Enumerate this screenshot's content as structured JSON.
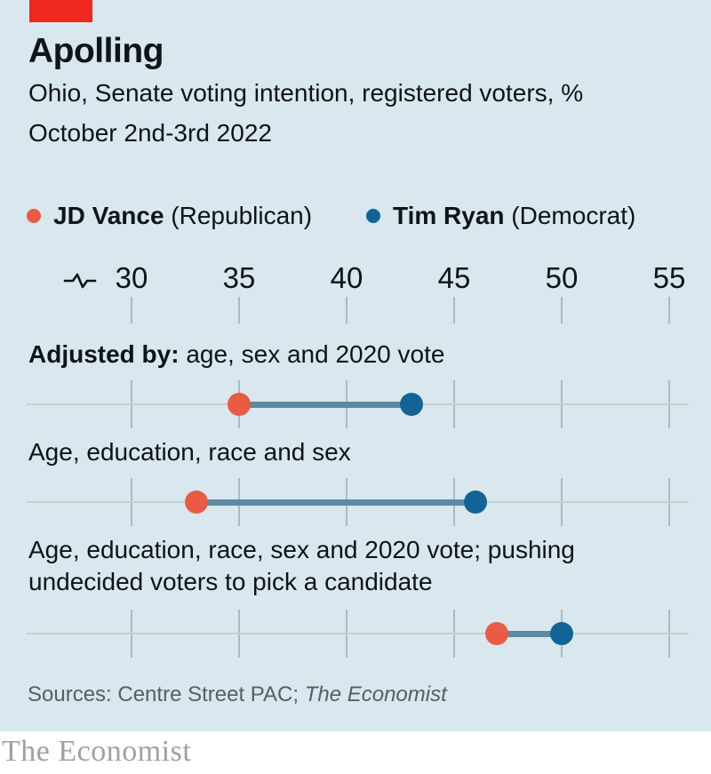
{
  "header": {
    "title": "Apolling",
    "subtitle": "Ohio, Senate voting intention, registered voters, %",
    "date": "October 2nd-3rd 2022"
  },
  "legend": {
    "vance": {
      "name": "JD Vance",
      "party": " (Republican)"
    },
    "ryan": {
      "name": "Tim Ryan",
      "party": " (Democrat)"
    }
  },
  "colors": {
    "background": "#d9e7ee",
    "banner_red": "#ee271f",
    "vance": "#ea5b44",
    "ryan": "#126496",
    "connector": "#5d89a2",
    "track": "#c9ced2",
    "tick": "#aeb9bf",
    "text": "#0e1418",
    "sources_text": "#565f63",
    "wordmark_gray": "#9ba1a5"
  },
  "chart_data": {
    "type": "dumbbell",
    "title": "Apolling",
    "subtitle": "Ohio, Senate voting intention, registered voters, %",
    "date": "October 2nd-3rd 2022",
    "unit": "%",
    "axis": {
      "min": 30,
      "max": 55,
      "ticks": [
        30,
        35,
        40,
        45,
        50,
        55
      ],
      "break_symbol": true,
      "orientation": "horizontal-top"
    },
    "series": [
      {
        "name": "JD Vance (Republican)",
        "color": "#ea5b44"
      },
      {
        "name": "Tim Ryan (Democrat)",
        "color": "#126496"
      }
    ],
    "rows": [
      {
        "label_bold": "Adjusted by: ",
        "label": "age, sex and 2020 vote",
        "vance": 35,
        "ryan": 43
      },
      {
        "label_bold": "",
        "label": "Age, education, race and sex",
        "vance": 33,
        "ryan": 46
      },
      {
        "label_bold": "",
        "label": "Age, education, race, sex and 2020 vote; pushing undecided voters to pick a candidate",
        "vance": 47,
        "ryan": 50
      }
    ]
  },
  "footer": {
    "sources_prefix": "Sources: Centre Street PAC; ",
    "sources_italic": "The Economist"
  },
  "brand": {
    "wordmark": "The Economist"
  }
}
